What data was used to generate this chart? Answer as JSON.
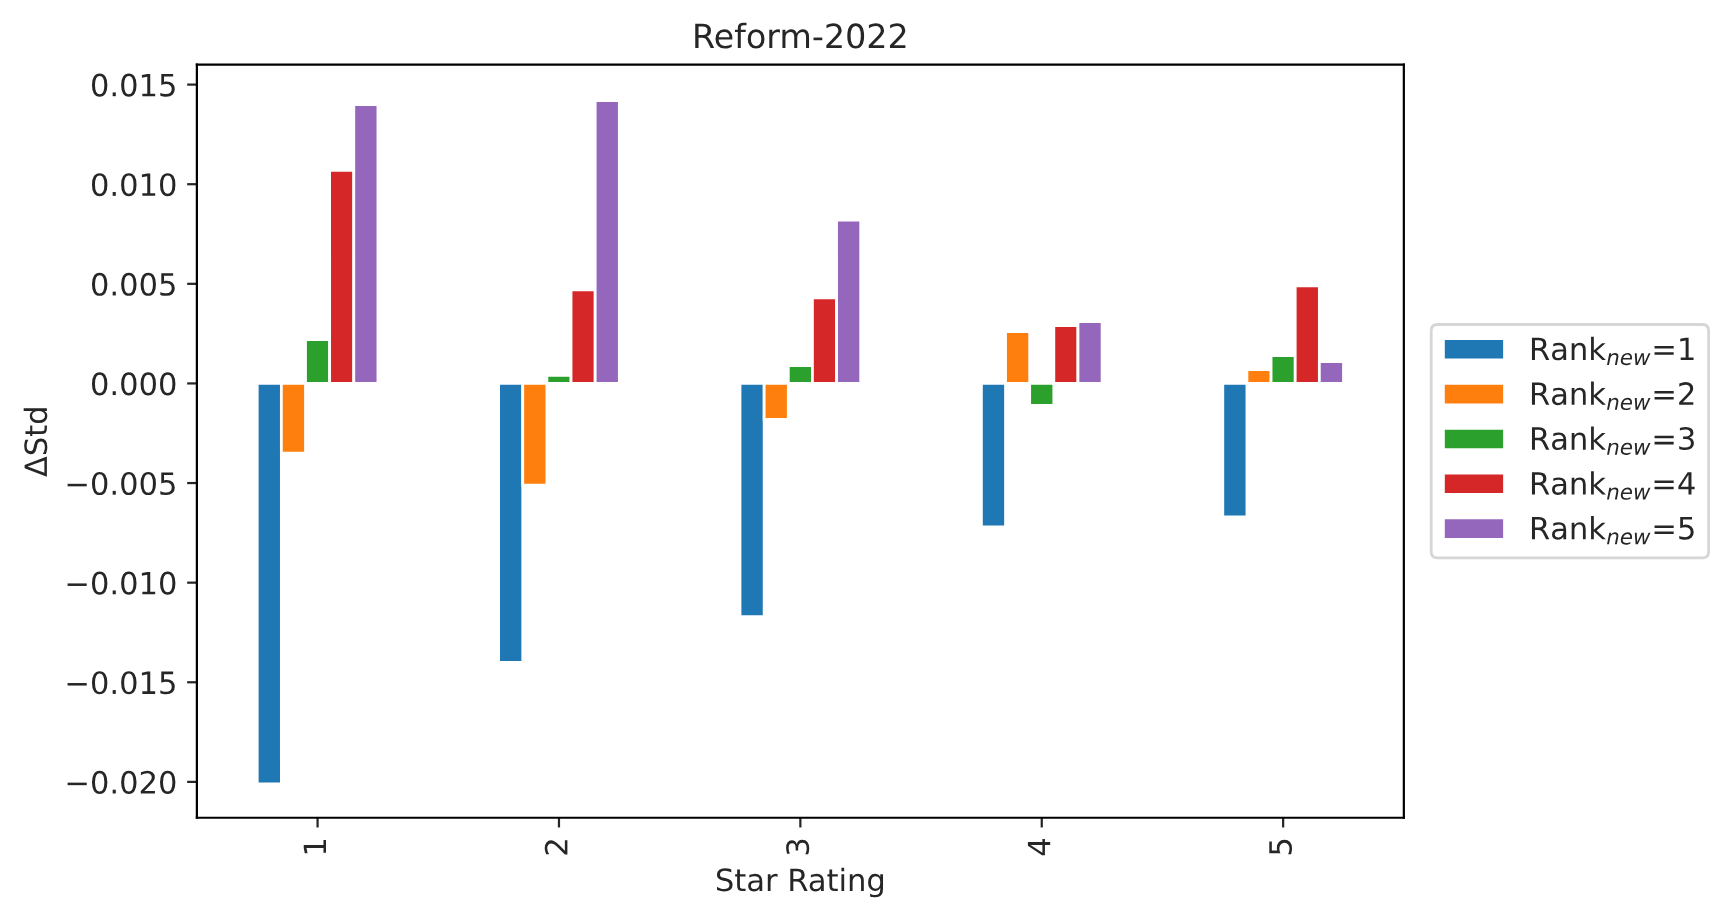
{
  "chart_data": {
    "type": "bar",
    "title": "Reform-2022",
    "xlabel": "Star Rating",
    "ylabel": "ΔStd",
    "categories": [
      "1",
      "2",
      "3",
      "4",
      "5"
    ],
    "series": [
      {
        "name": "Rank$_{new}$=1",
        "color": "#1f77b4",
        "values": [
          -0.0201,
          -0.014,
          -0.0117,
          -0.0072,
          -0.0067
        ]
      },
      {
        "name": "Rank$_{new}$=2",
        "color": "#ff7f0e",
        "values": [
          -0.0035,
          -0.0051,
          -0.0018,
          0.0026,
          0.0007
        ]
      },
      {
        "name": "Rank$_{new}$=3",
        "color": "#2ca02c",
        "values": [
          0.0022,
          0.0004,
          0.0009,
          -0.0011,
          0.0014
        ]
      },
      {
        "name": "Rank$_{new}$=4",
        "color": "#d62728",
        "values": [
          0.0107,
          0.0047,
          0.0043,
          0.0029,
          0.0049
        ]
      },
      {
        "name": "Rank$_{new}$=5",
        "color": "#9467bd",
        "values": [
          0.014,
          0.0142,
          0.0082,
          0.0031,
          0.0011
        ]
      }
    ],
    "ylim": [
      -0.0218,
      0.016
    ],
    "yticks": [
      {
        "value": -0.02,
        "label": "−0.020"
      },
      {
        "value": -0.015,
        "label": "−0.015"
      },
      {
        "value": -0.01,
        "label": "−0.010"
      },
      {
        "value": -0.005,
        "label": "−0.005"
      },
      {
        "value": 0,
        "label": "0.000"
      },
      {
        "value": 0.005,
        "label": "0.005"
      },
      {
        "value": 0.01,
        "label": "0.010"
      },
      {
        "value": 0.015,
        "label": "0.015"
      }
    ],
    "legend": "right"
  }
}
